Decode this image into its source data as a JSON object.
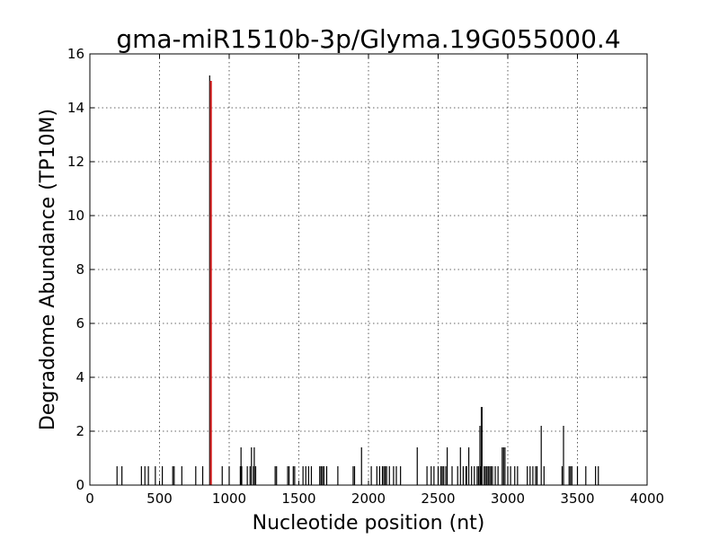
{
  "chart_data": {
    "type": "bar",
    "title": "gma-miR1510b-3p/Glyma.19G055000.4",
    "xlabel": "Nucleotide position (nt)",
    "ylabel": "Degradome Abundance (TP10M)",
    "xlim": [
      0,
      4000
    ],
    "ylim": [
      0,
      16
    ],
    "xticks": [
      "0",
      "500",
      "1000",
      "1500",
      "2000",
      "2500",
      "3000",
      "3500",
      "4000"
    ],
    "yticks": [
      "0",
      "2",
      "4",
      "6",
      "8",
      "10",
      "12",
      "14",
      "16"
    ],
    "grid": true,
    "colors": {
      "background_bar": "#000000",
      "target_bar": "#d62728"
    },
    "target": {
      "x": 869,
      "y": 15.0
    },
    "series": [
      {
        "x": [
          195,
          230,
          370,
          395,
          420,
          470,
          520,
          595,
          605,
          660,
          760,
          810,
          860,
          950,
          1000,
          1080,
          1085,
          1090,
          1130,
          1150,
          1160,
          1175,
          1180,
          1190,
          1330,
          1340,
          1420,
          1430,
          1460,
          1470,
          1530,
          1550,
          1570,
          1590,
          1650,
          1660,
          1670,
          1680,
          1700,
          1780,
          1890,
          1900,
          1950,
          2020,
          2060,
          2080,
          2100,
          2110,
          2120,
          2130,
          2150,
          2180,
          2200,
          2230,
          2350,
          2420,
          2450,
          2470,
          2500,
          2520,
          2530,
          2540,
          2555,
          2565,
          2600,
          2640,
          2660,
          2680,
          2700,
          2705,
          2720,
          2740,
          2760,
          2780,
          2790,
          2800,
          2805,
          2810,
          2815,
          2830,
          2840,
          2850,
          2860,
          2870,
          2880,
          2890,
          2910,
          2930,
          2960,
          2970,
          2980,
          3000,
          3020,
          3050,
          3070,
          3140,
          3160,
          3180,
          3200,
          3210,
          3240,
          3260,
          3390,
          3400,
          3440,
          3450,
          3460,
          3500,
          3560,
          3630,
          3650
        ],
        "values": [
          0.7,
          0.7,
          0.7,
          0.7,
          0.7,
          0.7,
          0.7,
          0.7,
          0.7,
          0.7,
          0.7,
          0.7,
          15.2,
          0.7,
          0.7,
          0.7,
          1.4,
          0.7,
          0.7,
          0.7,
          1.4,
          0.7,
          1.4,
          0.7,
          0.7,
          0.7,
          0.7,
          0.7,
          0.7,
          0.7,
          0.7,
          0.7,
          0.7,
          0.7,
          0.7,
          0.7,
          0.7,
          0.7,
          0.7,
          0.7,
          0.7,
          0.7,
          1.4,
          0.7,
          0.7,
          0.7,
          0.7,
          0.7,
          0.7,
          0.7,
          0.7,
          0.7,
          0.7,
          0.7,
          1.4,
          0.7,
          0.7,
          0.7,
          0.7,
          0.7,
          0.7,
          0.7,
          0.7,
          1.4,
          0.7,
          0.7,
          1.4,
          0.7,
          0.7,
          0.7,
          1.4,
          0.7,
          0.7,
          0.7,
          0.7,
          2.2,
          0.7,
          2.9,
          2.9,
          0.7,
          0.7,
          0.7,
          0.7,
          0.7,
          0.7,
          0.7,
          0.7,
          0.7,
          1.4,
          1.4,
          1.4,
          0.7,
          0.7,
          0.7,
          0.7,
          0.7,
          0.7,
          0.7,
          0.7,
          0.7,
          2.2,
          0.7,
          0.7,
          2.2,
          0.7,
          0.7,
          0.7,
          0.7,
          0.7,
          0.7,
          0.7
        ]
      }
    ]
  }
}
